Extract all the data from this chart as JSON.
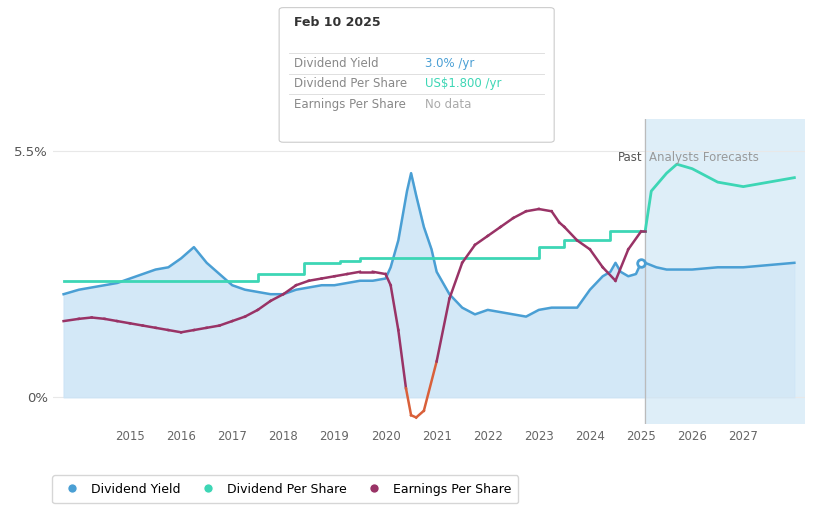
{
  "tooltip_date": "Feb 10 2025",
  "tooltip_dy": "3.0%",
  "tooltip_dps": "US$1.800",
  "tooltip_eps": "No data",
  "past_label": "Past",
  "forecast_label": "Analysts Forecasts",
  "ylim": [
    -0.6,
    6.2
  ],
  "xlim": [
    2013.5,
    2028.2
  ],
  "past_cutoff": 2025.08,
  "bg_color": "#ffffff",
  "fill_color": "#cce4f6",
  "forecast_bg": "#deeef8",
  "dividend_yield_color": "#4a9fd4",
  "dividend_per_share_color": "#3dd6b5",
  "earnings_per_share_color": "#993366",
  "earnings_negative_color": "#d9603a",
  "grid_color": "#e8e8e8",
  "div_yield_x": [
    2013.7,
    2014.0,
    2014.25,
    2014.5,
    2014.75,
    2015.0,
    2015.25,
    2015.5,
    2015.75,
    2016.0,
    2016.1,
    2016.25,
    2016.5,
    2016.75,
    2017.0,
    2017.25,
    2017.5,
    2017.75,
    2018.0,
    2018.25,
    2018.5,
    2018.75,
    2019.0,
    2019.25,
    2019.5,
    2019.75,
    2020.0,
    2020.1,
    2020.25,
    2020.42,
    2020.5,
    2020.6,
    2020.75,
    2020.9,
    2021.0,
    2021.25,
    2021.5,
    2021.75,
    2022.0,
    2022.25,
    2022.5,
    2022.75,
    2023.0,
    2023.25,
    2023.5,
    2023.75,
    2024.0,
    2024.25,
    2024.4,
    2024.5,
    2024.6,
    2024.75,
    2024.9,
    2025.0,
    2025.08
  ],
  "div_yield_y": [
    2.3,
    2.4,
    2.45,
    2.5,
    2.55,
    2.65,
    2.75,
    2.85,
    2.9,
    3.1,
    3.2,
    3.35,
    3.0,
    2.75,
    2.5,
    2.4,
    2.35,
    2.3,
    2.3,
    2.4,
    2.45,
    2.5,
    2.5,
    2.55,
    2.6,
    2.6,
    2.65,
    2.9,
    3.5,
    4.6,
    5.0,
    4.5,
    3.8,
    3.3,
    2.8,
    2.3,
    2.0,
    1.85,
    1.95,
    1.9,
    1.85,
    1.8,
    1.95,
    2.0,
    2.0,
    2.0,
    2.4,
    2.7,
    2.8,
    3.0,
    2.8,
    2.7,
    2.75,
    3.0,
    3.0
  ],
  "div_yield_forecast_x": [
    2025.08,
    2025.3,
    2025.5,
    2026.0,
    2026.5,
    2027.0,
    2027.5,
    2028.0
  ],
  "div_yield_forecast_y": [
    3.0,
    2.9,
    2.85,
    2.85,
    2.9,
    2.9,
    2.95,
    3.0
  ],
  "div_per_share_x": [
    2013.7,
    2014.9,
    2015.0,
    2017.4,
    2017.5,
    2018.3,
    2018.4,
    2019.0,
    2019.1,
    2019.4,
    2019.5,
    2020.4,
    2020.5,
    2022.9,
    2023.0,
    2023.4,
    2023.5,
    2024.3,
    2024.4,
    2025.0,
    2025.08
  ],
  "div_per_share_y": [
    2.6,
    2.6,
    2.6,
    2.6,
    2.75,
    2.75,
    3.0,
    3.0,
    3.05,
    3.05,
    3.1,
    3.1,
    3.1,
    3.1,
    3.35,
    3.35,
    3.5,
    3.5,
    3.7,
    3.7,
    3.7
  ],
  "div_per_share_forecast_x": [
    2025.08,
    2025.2,
    2025.5,
    2025.7,
    2026.0,
    2026.5,
    2027.0,
    2027.5,
    2028.0
  ],
  "div_per_share_forecast_y": [
    3.7,
    4.6,
    5.0,
    5.2,
    5.1,
    4.8,
    4.7,
    4.8,
    4.9
  ],
  "eps_x": [
    2013.7,
    2014.0,
    2014.25,
    2014.5,
    2014.75,
    2015.0,
    2015.25,
    2015.5,
    2015.75,
    2016.0,
    2016.25,
    2016.5,
    2016.75,
    2017.0,
    2017.25,
    2017.5,
    2017.75,
    2018.0,
    2018.25,
    2018.5,
    2018.75,
    2019.0,
    2019.25,
    2019.5,
    2019.75,
    2020.0,
    2020.1,
    2020.25,
    2020.4,
    2020.5,
    2020.6,
    2020.75,
    2021.0,
    2021.25,
    2021.5,
    2021.75,
    2022.0,
    2022.25,
    2022.5,
    2022.75,
    2023.0,
    2023.25,
    2023.4,
    2023.5,
    2023.75,
    2024.0,
    2024.25,
    2024.5,
    2024.75,
    2025.0,
    2025.08
  ],
  "eps_y": [
    1.7,
    1.75,
    1.78,
    1.75,
    1.7,
    1.65,
    1.6,
    1.55,
    1.5,
    1.45,
    1.5,
    1.55,
    1.6,
    1.7,
    1.8,
    1.95,
    2.15,
    2.3,
    2.5,
    2.6,
    2.65,
    2.7,
    2.75,
    2.8,
    2.8,
    2.75,
    2.5,
    1.5,
    0.2,
    -0.4,
    -0.45,
    -0.3,
    0.8,
    2.2,
    3.0,
    3.4,
    3.6,
    3.8,
    4.0,
    4.15,
    4.2,
    4.15,
    3.9,
    3.8,
    3.5,
    3.3,
    2.9,
    2.6,
    3.3,
    3.7,
    3.7
  ]
}
